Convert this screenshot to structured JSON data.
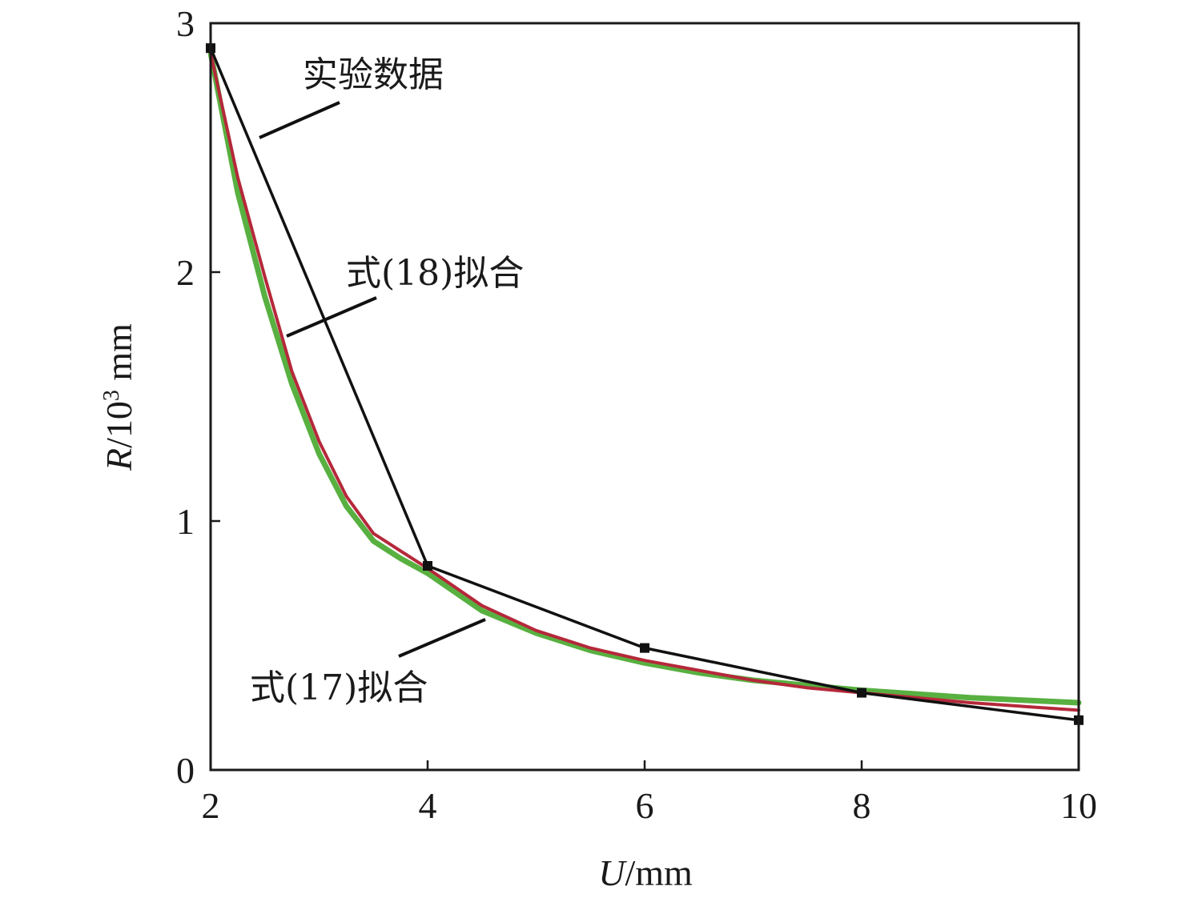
{
  "chart_data": {
    "type": "line",
    "xlabel_var": "U",
    "xlabel_unit": "/mm",
    "ylabel_var": "R",
    "ylabel_unit": "/10",
    "ylabel_exp": "3",
    "ylabel_tail": " mm",
    "xlim": [
      2,
      10
    ],
    "ylim": [
      0,
      3
    ],
    "xticks": [
      2,
      4,
      6,
      8,
      10
    ],
    "yticks": [
      0,
      1,
      2,
      3
    ],
    "grid": false,
    "series": [
      {
        "name": "实验数据",
        "color": "#111111",
        "markers": true,
        "x": [
          2,
          4,
          6,
          8,
          10
        ],
        "y": [
          2.9,
          0.82,
          0.49,
          0.31,
          0.2
        ]
      },
      {
        "name": "式(18)拟合",
        "color": "#b5283a",
        "x": [
          2,
          2.25,
          2.5,
          2.75,
          3,
          3.25,
          3.5,
          3.75,
          4,
          4.5,
          5,
          5.5,
          6,
          6.5,
          7,
          7.5,
          8,
          8.5,
          9,
          9.5,
          10
        ],
        "y": [
          2.88,
          2.38,
          1.98,
          1.6,
          1.32,
          1.1,
          0.95,
          0.88,
          0.81,
          0.66,
          0.56,
          0.49,
          0.44,
          0.4,
          0.36,
          0.33,
          0.31,
          0.29,
          0.27,
          0.255,
          0.24
        ]
      },
      {
        "name": "式(17)拟合",
        "color": "#58b040",
        "x": [
          2,
          2.25,
          2.5,
          2.75,
          3,
          3.25,
          3.5,
          3.75,
          4,
          4.5,
          5,
          5.5,
          6,
          6.5,
          7,
          7.5,
          8,
          8.5,
          9,
          9.5,
          10
        ],
        "y": [
          2.88,
          2.32,
          1.9,
          1.55,
          1.27,
          1.06,
          0.92,
          0.85,
          0.79,
          0.64,
          0.55,
          0.48,
          0.43,
          0.39,
          0.36,
          0.34,
          0.32,
          0.305,
          0.29,
          0.28,
          0.27
        ]
      }
    ],
    "annotations": [
      "实验数据",
      "式(18)拟合",
      "式(17)拟合"
    ]
  }
}
